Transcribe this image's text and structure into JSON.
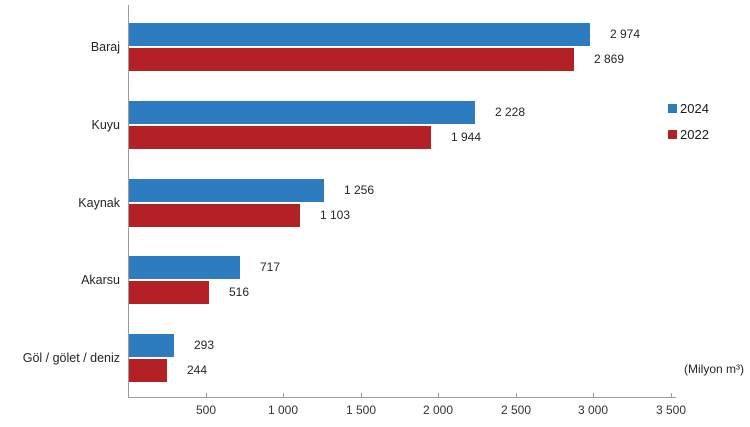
{
  "chart_data": {
    "type": "bar",
    "orientation": "horizontal",
    "title": "",
    "categories": [
      "Baraj",
      "Kuyu",
      "Kaynak",
      "Akarsu",
      "Göl / gölet / deniz"
    ],
    "series": [
      {
        "name": "2024",
        "color": "#2D7CBF",
        "values": [
          2974,
          2228,
          1256,
          717,
          293
        ],
        "labels": [
          "2 974",
          "2 228",
          "1 256",
          "717",
          "293"
        ]
      },
      {
        "name": "2022",
        "color": "#B32025",
        "values": [
          2869,
          1944,
          1103,
          516,
          244
        ],
        "labels": [
          "2 869",
          "1 944",
          "1 103",
          "516",
          "244"
        ]
      }
    ],
    "xlim": [
      0,
      3500
    ],
    "x_ticks": [
      500,
      1000,
      1500,
      2000,
      2500,
      3000,
      3500
    ],
    "x_tick_labels": [
      "500",
      "1 000",
      "1 500",
      "2 000",
      "2 500",
      "3 000",
      "3 500"
    ],
    "grid": false,
    "legend_position": "right",
    "unit_label": "(Milyon m³)"
  }
}
